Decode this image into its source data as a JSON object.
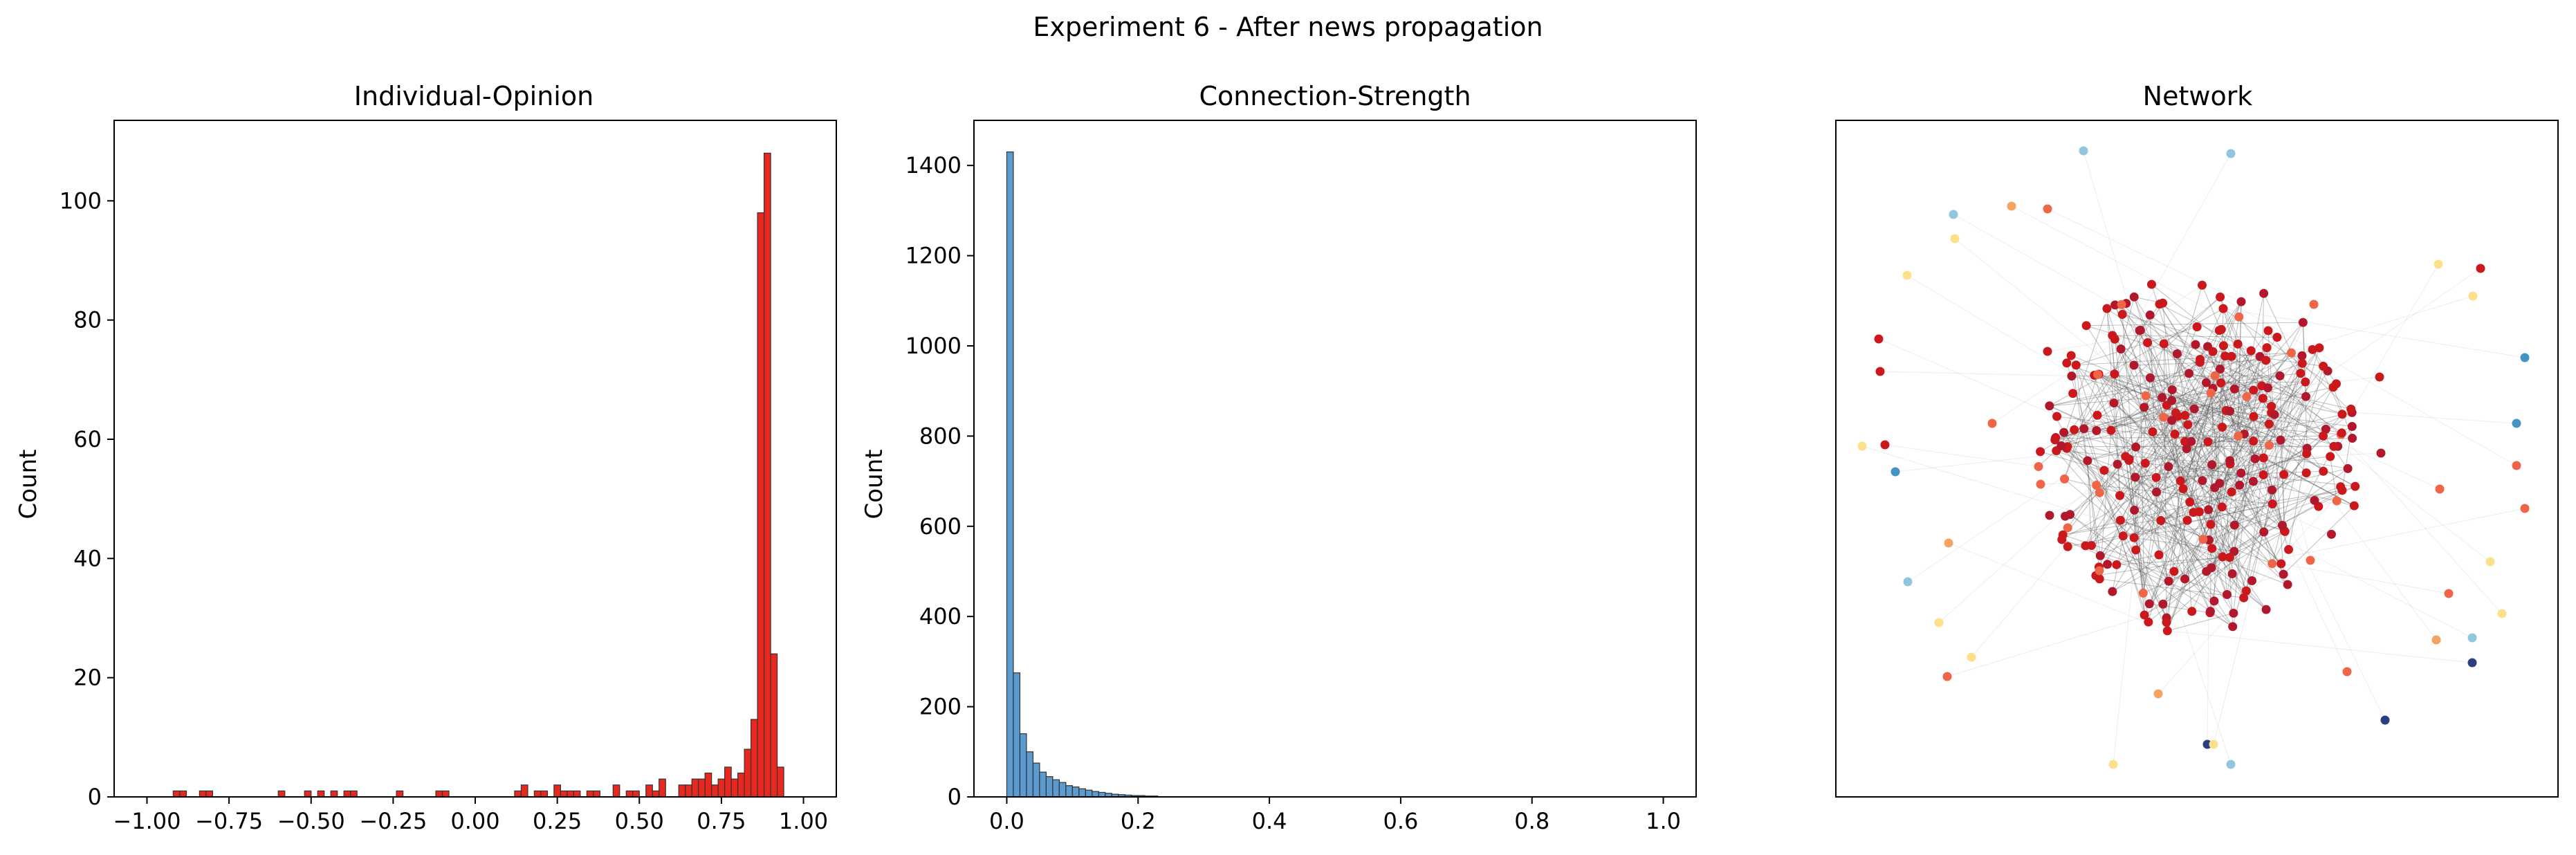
{
  "figure_title": "Experiment 6 - After news propagation",
  "chart_data": [
    {
      "type": "bar",
      "title": "Individual-Opinion",
      "xlabel": "",
      "ylabel": "Count",
      "xlim": [
        -1.1,
        1.1
      ],
      "ylim": [
        0,
        113.5
      ],
      "xticks": [
        -1.0,
        -0.75,
        -0.5,
        -0.25,
        0.0,
        0.25,
        0.5,
        0.75,
        1.0
      ],
      "xtick_labels": [
        "−1.00",
        "−0.75",
        "−0.50",
        "−0.25",
        "0.00",
        "0.25",
        "0.50",
        "0.75",
        "1.00"
      ],
      "yticks": [
        0,
        20,
        40,
        60,
        80,
        100
      ],
      "ytick_labels": [
        "0",
        "20",
        "40",
        "60",
        "80",
        "100"
      ],
      "bin_width": 0.02,
      "bar_color": "#e8281e",
      "bin_starts": [
        -0.92,
        -0.9,
        -0.84,
        -0.82,
        -0.6,
        -0.52,
        -0.48,
        -0.44,
        -0.4,
        -0.38,
        -0.24,
        -0.12,
        -0.1,
        0.12,
        0.14,
        0.18,
        0.2,
        0.24,
        0.26,
        0.28,
        0.3,
        0.34,
        0.36,
        0.42,
        0.46,
        0.48,
        0.52,
        0.54,
        0.56,
        0.62,
        0.64,
        0.66,
        0.68,
        0.7,
        0.72,
        0.74,
        0.76,
        0.78,
        0.8,
        0.82,
        0.84,
        0.86,
        0.88,
        0.9,
        0.92
      ],
      "values": [
        1,
        1,
        1,
        1,
        1,
        1,
        1,
        1,
        1,
        1,
        1,
        1,
        1,
        1,
        2,
        1,
        1,
        2,
        1,
        1,
        1,
        1,
        1,
        2,
        1,
        1,
        2,
        1,
        3,
        2,
        2,
        3,
        3,
        4,
        2,
        3,
        5,
        3,
        4,
        8,
        13,
        98,
        108,
        24,
        5
      ]
    },
    {
      "type": "bar",
      "title": "Connection-Strength",
      "xlabel": "",
      "ylabel": "Count",
      "xlim": [
        -0.05,
        1.05
      ],
      "ylim": [
        0,
        1500
      ],
      "xticks": [
        0.0,
        0.2,
        0.4,
        0.6,
        0.8,
        1.0
      ],
      "xtick_labels": [
        "0.0",
        "0.2",
        "0.4",
        "0.6",
        "0.8",
        "1.0"
      ],
      "yticks": [
        0,
        200,
        400,
        600,
        800,
        1000,
        1200,
        1400
      ],
      "ytick_labels": [
        "0",
        "200",
        "400",
        "600",
        "800",
        "1000",
        "1200",
        "1400"
      ],
      "bin_width": 0.01,
      "bar_color": "#5b9bcf",
      "bin_starts": [
        0.0,
        0.01,
        0.02,
        0.03,
        0.04,
        0.05,
        0.06,
        0.07,
        0.08,
        0.09,
        0.1,
        0.11,
        0.12,
        0.13,
        0.14,
        0.15,
        0.16,
        0.17,
        0.18,
        0.19,
        0.2,
        0.21,
        0.22
      ],
      "values": [
        1430,
        275,
        140,
        100,
        75,
        55,
        45,
        38,
        32,
        25,
        22,
        18,
        15,
        12,
        10,
        8,
        6,
        5,
        4,
        3,
        3,
        2,
        2
      ]
    },
    {
      "type": "scatter",
      "title": "Network",
      "xlabel": "",
      "ylabel": "",
      "description": "force-directed network graph: dense central cluster of dark-red nodes connected by thin gray edges, with scattered peripheral nodes colored by opinion (red, orange, yellow, light blue, dark blue)",
      "colors": {
        "dark_red": "#b2182b",
        "red": "#cb181d",
        "orange_red": "#ef6548",
        "orange": "#f4a460",
        "yellow": "#fee08b",
        "light_blue": "#92c5de",
        "blue": "#4393c3",
        "dark_blue": "#2c3e80",
        "edge": "#555555"
      }
    }
  ]
}
